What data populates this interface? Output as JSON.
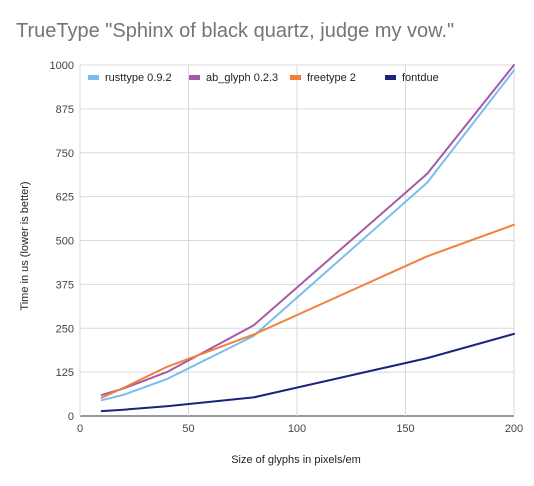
{
  "chart_data": {
    "type": "line",
    "title": "TrueType \"Sphinx of black quartz, judge my vow.\"",
    "xlabel": "Size of glyphs in pixels/em",
    "ylabel": "Time in us (lower is better)",
    "xlim": [
      0,
      200
    ],
    "ylim": [
      0,
      1000
    ],
    "x_ticks": [
      0,
      50,
      100,
      150,
      200
    ],
    "y_ticks": [
      0,
      125,
      250,
      375,
      500,
      625,
      750,
      875,
      1000
    ],
    "x_tick_labels": [
      "0",
      "50",
      "100",
      "150",
      "200"
    ],
    "y_tick_labels": [
      "0",
      "125",
      "250",
      "375",
      "500",
      "625",
      "750",
      "875",
      "1000"
    ],
    "grid": true,
    "legend_position": "top",
    "series": [
      {
        "name": "rusttype 0.9.2",
        "color": "#7bbcf0",
        "x": [
          10,
          20,
          40,
          80,
          160,
          200
        ],
        "y": [
          45,
          60,
          105,
          228,
          665,
          985
        ]
      },
      {
        "name": "ab_glyph 0.2.3",
        "color": "#a45ba5",
        "x": [
          10,
          20,
          40,
          80,
          160,
          200
        ],
        "y": [
          60,
          78,
          125,
          258,
          690,
          1000
        ]
      },
      {
        "name": "freetype 2",
        "color": "#f0803c",
        "x": [
          10,
          20,
          40,
          80,
          160,
          200
        ],
        "y": [
          52,
          80,
          140,
          232,
          455,
          545
        ]
      },
      {
        "name": "fontdue",
        "color": "#1a237e",
        "x": [
          10,
          20,
          40,
          80,
          160,
          200
        ],
        "y": [
          14,
          18,
          28,
          53,
          165,
          234
        ]
      }
    ]
  }
}
